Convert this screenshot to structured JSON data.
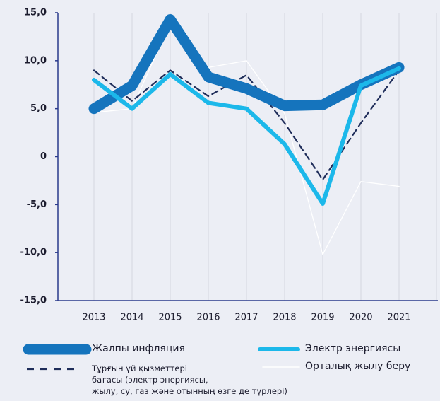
{
  "chart_data": {
    "type": "line",
    "categories": [
      "2013",
      "2014",
      "2015",
      "2016",
      "2017",
      "2018",
      "2019",
      "2020",
      "2021"
    ],
    "series": [
      {
        "name": "Жалпы инфляция",
        "color": "#1574bd",
        "values": [
          5.0,
          7.4,
          14.3,
          8.3,
          7.1,
          5.3,
          5.4,
          7.5,
          9.3
        ]
      },
      {
        "name": "Электр энергиясы",
        "color": "#1cb8ea",
        "values": [
          8.0,
          5.0,
          8.6,
          5.6,
          5.0,
          1.3,
          -4.9,
          7.4,
          9.2
        ]
      },
      {
        "name": "Тұрғын үй қызметтері\nбағасы (электр энергиясы,\nжылу, су, газ және отынның өзге де түрлері)",
        "color": "#1f2d5a",
        "values": [
          9.0,
          5.8,
          9.0,
          6.3,
          8.5,
          3.5,
          -2.4,
          3.5,
          9.0
        ]
      },
      {
        "name": "Орталық жылу беру",
        "color": "#ffffff",
        "values": [
          4.6,
          5.0,
          14.0,
          9.3,
          10.0,
          4.5,
          -10.2,
          -2.6,
          -3.1
        ]
      }
    ],
    "ylim": [
      -15,
      15
    ],
    "yticks": [
      {
        "value": -15,
        "label": "-15,0"
      },
      {
        "value": -10,
        "label": "-10,0"
      },
      {
        "value": -5,
        "label": "-5,0"
      },
      0,
      {
        "value": 5,
        "label": "5,0"
      },
      {
        "value": 10,
        "label": "10,0"
      },
      {
        "value": 15,
        "label": "15,0"
      }
    ]
  }
}
